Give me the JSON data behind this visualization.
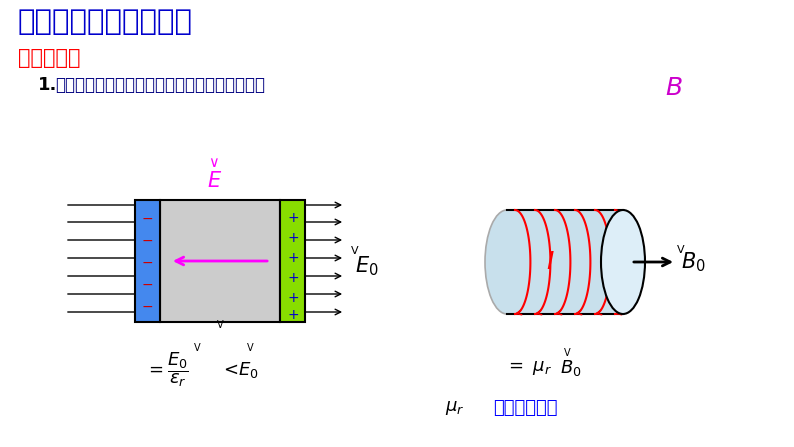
{
  "title": "磁介质及磁化微观机制",
  "subtitle": "一、磁介质",
  "point1_prefix": "1.",
  "point1_text": "磁介质：是经磁化后能够影响磁场分布的物质。",
  "bg_color": "#ffffff",
  "title_color": "#0000cc",
  "subtitle_color": "#ff0000",
  "point1_color": "#000080",
  "B_italic_color": "#cc00cc",
  "blue_strip_color": "#4488ee",
  "green_strip_color": "#88dd00",
  "gray_fill_color": "#cccccc",
  "cyl_body_color": "#c8e0ec",
  "cyl_front_color": "#ddeef8",
  "mu_r_text": "一相对磁导率",
  "mu_r_text_color": "#0000ff"
}
